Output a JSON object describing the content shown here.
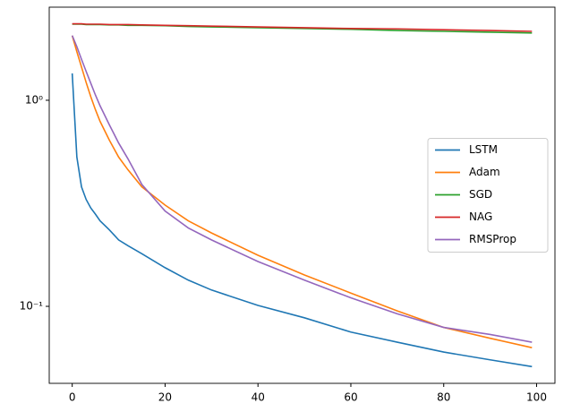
{
  "chart_data": {
    "type": "line",
    "log_y": true,
    "legend": "center right",
    "x": [
      0,
      1,
      2,
      3,
      4,
      5,
      6,
      8,
      10,
      12,
      15,
      20,
      25,
      30,
      40,
      50,
      60,
      70,
      80,
      90,
      99
    ],
    "xlim": [
      -4.95,
      103.95
    ],
    "xticks": [
      0,
      20,
      40,
      60,
      80,
      100
    ],
    "ylim": [
      0.0423,
      2.83
    ],
    "yticks": [
      {
        "value": 1,
        "label": "10⁰"
      },
      {
        "value": 0.1,
        "label": "10⁻¹"
      }
    ],
    "series": [
      {
        "name": "LSTM",
        "color": "#1f77b4",
        "values": [
          1.35,
          0.53,
          0.38,
          0.33,
          0.3,
          0.28,
          0.26,
          0.235,
          0.21,
          0.197,
          0.18,
          0.154,
          0.134,
          0.12,
          0.101,
          0.088,
          0.075,
          0.067,
          0.06,
          0.055,
          0.051
        ]
      },
      {
        "name": "Adam",
        "color": "#ff7f0e",
        "values": [
          2.06,
          1.72,
          1.45,
          1.22,
          1.04,
          0.9,
          0.79,
          0.64,
          0.53,
          0.46,
          0.38,
          0.31,
          0.26,
          0.227,
          0.177,
          0.142,
          0.116,
          0.095,
          0.079,
          0.07,
          0.063
        ]
      },
      {
        "name": "SGD",
        "color": "#2ca02c",
        "values": [
          2.34,
          2.34,
          2.34,
          2.33,
          2.33,
          2.33,
          2.33,
          2.32,
          2.32,
          2.31,
          2.31,
          2.3,
          2.28,
          2.27,
          2.25,
          2.23,
          2.21,
          2.18,
          2.16,
          2.14,
          2.12
        ]
      },
      {
        "name": "NAG",
        "color": "#d62728",
        "values": [
          2.35,
          2.35,
          2.35,
          2.34,
          2.34,
          2.34,
          2.34,
          2.33,
          2.33,
          2.33,
          2.32,
          2.31,
          2.3,
          2.29,
          2.27,
          2.25,
          2.23,
          2.22,
          2.2,
          2.18,
          2.16
        ]
      },
      {
        "name": "RMSProp",
        "color": "#9467bd",
        "values": [
          2.06,
          1.82,
          1.58,
          1.38,
          1.21,
          1.06,
          0.94,
          0.76,
          0.62,
          0.52,
          0.39,
          0.29,
          0.24,
          0.21,
          0.165,
          0.134,
          0.11,
          0.092,
          0.079,
          0.073,
          0.067
        ]
      }
    ]
  }
}
